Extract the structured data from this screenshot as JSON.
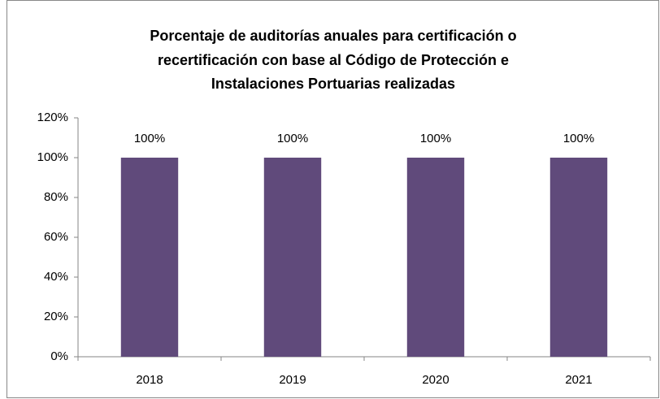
{
  "chart_data": {
    "type": "bar",
    "title": [
      "Porcentaje de auditorías anuales para certificación o",
      "recertificación con base al Código de Protección e",
      "Instalaciones Portuarias realizadas"
    ],
    "categories": [
      "2018",
      "2019",
      "2020",
      "2021"
    ],
    "values": [
      100,
      100,
      100,
      100
    ],
    "value_labels": [
      "100%",
      "100%",
      "100%",
      "100%"
    ],
    "color": "#604a7b",
    "ylim": [
      0,
      120
    ],
    "yticks": [
      {
        "value": 0,
        "label": "0%"
      },
      {
        "value": 20,
        "label": "20%"
      },
      {
        "value": 40,
        "label": "40%"
      },
      {
        "value": 60,
        "label": "60%"
      },
      {
        "value": 80,
        "label": "80%"
      },
      {
        "value": 100,
        "label": "100%"
      },
      {
        "value": 120,
        "label": "120%"
      }
    ],
    "grid": false
  }
}
